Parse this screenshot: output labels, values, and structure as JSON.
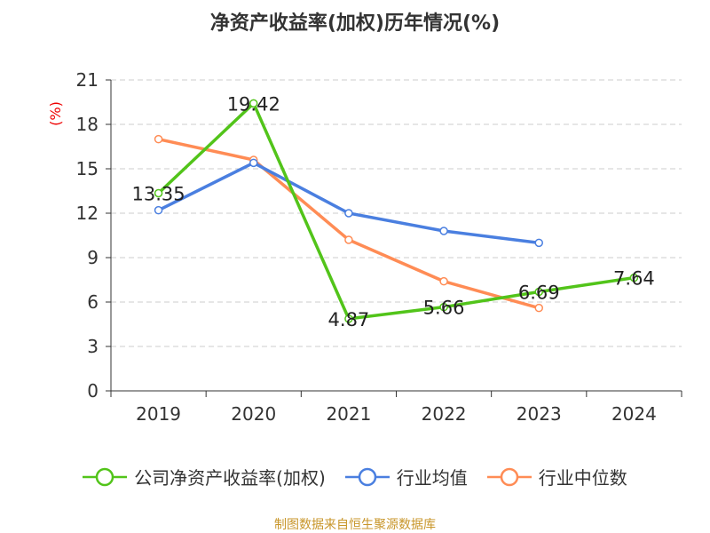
{
  "chart_data": {
    "type": "line",
    "title": "净资产收益率(加权)历年情况(%)",
    "ylabel": "(%)",
    "categories": [
      "2019",
      "2020",
      "2021",
      "2022",
      "2023",
      "2024"
    ],
    "ylim": [
      0,
      21
    ],
    "yticks": [
      0,
      3,
      6,
      9,
      12,
      15,
      18,
      21
    ],
    "grid": true,
    "legend_position": "bottom",
    "series": [
      {
        "name": "公司净资产收益率(加权)",
        "color": "#52c41a",
        "values": [
          13.35,
          19.42,
          4.87,
          5.66,
          6.69,
          7.64
        ],
        "labels": [
          "13.35",
          "19.42",
          "4.87",
          "5.66",
          "6.69",
          "7.64"
        ]
      },
      {
        "name": "行业均值",
        "color": "#4a7fe0",
        "values": [
          12.2,
          15.4,
          12.0,
          10.8,
          10.0,
          null
        ]
      },
      {
        "name": "行业中位数",
        "color": "#ff8c55",
        "values": [
          17.0,
          15.6,
          10.2,
          7.4,
          5.6,
          null
        ]
      }
    ]
  },
  "source": "制图数据来自恒生聚源数据库"
}
